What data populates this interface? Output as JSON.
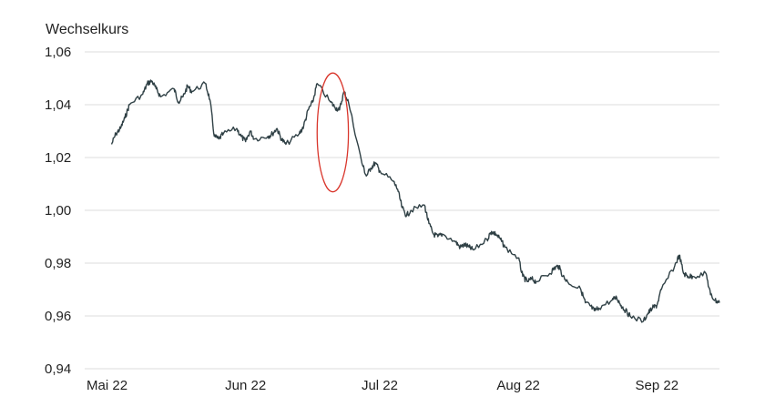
{
  "chart_data": {
    "type": "line",
    "title": "",
    "ylabel": "Wechselkurs",
    "xlabel": "",
    "ylim": [
      0.94,
      1.06
    ],
    "y_ticks": [
      "1,06",
      "1,04",
      "1,02",
      "1,00",
      "0,98",
      "0,96",
      "0,94"
    ],
    "y_tick_values": [
      1.06,
      1.04,
      1.02,
      1.0,
      0.98,
      0.96,
      0.94
    ],
    "x_ticks": [
      {
        "label": "Mai 22",
        "date": "2022-05-01"
      },
      {
        "label": "Jun 22",
        "date": "2022-06-01"
      },
      {
        "label": "Jul 22",
        "date": "2022-07-01"
      },
      {
        "label": "Aug 22",
        "date": "2022-08-01"
      },
      {
        "label": "Sep 22",
        "date": "2022-09-01"
      }
    ],
    "xlim": [
      "2022-04-26",
      "2022-09-15"
    ],
    "grid": "horizontal",
    "series": [
      {
        "color": "#2f4045",
        "points": [
          [
            "2022-05-02",
            1.025
          ],
          [
            "2022-05-03",
            1.029
          ],
          [
            "2022-05-04",
            1.031
          ],
          [
            "2022-05-05",
            1.035
          ],
          [
            "2022-05-06",
            1.04
          ],
          [
            "2022-05-09",
            1.044
          ],
          [
            "2022-05-10",
            1.048
          ],
          [
            "2022-05-11",
            1.049
          ],
          [
            "2022-05-12",
            1.046
          ],
          [
            "2022-05-13",
            1.043
          ],
          [
            "2022-05-16",
            1.046
          ],
          [
            "2022-05-17",
            1.041
          ],
          [
            "2022-05-18",
            1.043
          ],
          [
            "2022-05-19",
            1.047
          ],
          [
            "2022-05-20",
            1.045
          ],
          [
            "2022-05-23",
            1.048
          ],
          [
            "2022-05-24",
            1.042
          ],
          [
            "2022-05-25",
            1.028
          ],
          [
            "2022-05-26",
            1.027
          ],
          [
            "2022-05-27",
            1.029
          ],
          [
            "2022-05-30",
            1.031
          ],
          [
            "2022-05-31",
            1.028
          ],
          [
            "2022-06-01",
            1.026
          ],
          [
            "2022-06-02",
            1.03
          ],
          [
            "2022-06-03",
            1.027
          ],
          [
            "2022-06-06",
            1.028
          ],
          [
            "2022-06-07",
            1.029
          ],
          [
            "2022-06-08",
            1.031
          ],
          [
            "2022-06-09",
            1.027
          ],
          [
            "2022-06-10",
            1.025
          ],
          [
            "2022-06-13",
            1.029
          ],
          [
            "2022-06-14",
            1.032
          ],
          [
            "2022-06-15",
            1.038
          ],
          [
            "2022-06-16",
            1.041
          ],
          [
            "2022-06-17",
            1.048
          ],
          [
            "2022-06-20",
            1.041
          ],
          [
            "2022-06-21",
            1.039
          ],
          [
            "2022-06-22",
            1.038
          ],
          [
            "2022-06-23",
            1.045
          ],
          [
            "2022-06-24",
            1.041
          ],
          [
            "2022-06-27",
            1.018
          ],
          [
            "2022-06-28",
            1.013
          ],
          [
            "2022-06-29",
            1.016
          ],
          [
            "2022-06-30",
            1.018
          ],
          [
            "2022-07-01",
            1.015
          ],
          [
            "2022-07-04",
            1.011
          ],
          [
            "2022-07-05",
            1.008
          ],
          [
            "2022-07-06",
            1.001
          ],
          [
            "2022-07-07",
            0.998
          ],
          [
            "2022-07-08",
            1.0
          ],
          [
            "2022-07-11",
            1.002
          ],
          [
            "2022-07-12",
            0.995
          ],
          [
            "2022-07-13",
            0.991
          ],
          [
            "2022-07-14",
            0.99
          ],
          [
            "2022-07-15",
            0.991
          ],
          [
            "2022-07-18",
            0.988
          ],
          [
            "2022-07-19",
            0.986
          ],
          [
            "2022-07-20",
            0.987
          ],
          [
            "2022-07-21",
            0.986
          ],
          [
            "2022-07-22",
            0.985
          ],
          [
            "2022-07-25",
            0.989
          ],
          [
            "2022-07-26",
            0.992
          ],
          [
            "2022-07-27",
            0.991
          ],
          [
            "2022-07-28",
            0.989
          ],
          [
            "2022-07-29",
            0.986
          ],
          [
            "2022-08-01",
            0.982
          ],
          [
            "2022-08-02",
            0.975
          ],
          [
            "2022-08-03",
            0.973
          ],
          [
            "2022-08-04",
            0.974
          ],
          [
            "2022-08-05",
            0.973
          ],
          [
            "2022-08-08",
            0.976
          ],
          [
            "2022-08-09",
            0.978
          ],
          [
            "2022-08-10",
            0.979
          ],
          [
            "2022-08-11",
            0.975
          ],
          [
            "2022-08-12",
            0.973
          ],
          [
            "2022-08-15",
            0.97
          ],
          [
            "2022-08-16",
            0.965
          ],
          [
            "2022-08-17",
            0.964
          ],
          [
            "2022-08-18",
            0.962
          ],
          [
            "2022-08-19",
            0.963
          ],
          [
            "2022-08-22",
            0.966
          ],
          [
            "2022-08-23",
            0.967
          ],
          [
            "2022-08-24",
            0.964
          ],
          [
            "2022-08-25",
            0.962
          ],
          [
            "2022-08-26",
            0.96
          ],
          [
            "2022-08-29",
            0.958
          ],
          [
            "2022-08-30",
            0.961
          ],
          [
            "2022-08-31",
            0.963
          ],
          [
            "2022-09-01",
            0.964
          ],
          [
            "2022-09-02",
            0.97
          ],
          [
            "2022-09-05",
            0.979
          ],
          [
            "2022-09-06",
            0.983
          ],
          [
            "2022-09-07",
            0.976
          ],
          [
            "2022-09-08",
            0.975
          ],
          [
            "2022-09-09",
            0.975
          ],
          [
            "2022-09-12",
            0.976
          ],
          [
            "2022-09-13",
            0.968
          ],
          [
            "2022-09-14",
            0.966
          ],
          [
            "2022-09-15",
            0.965
          ]
        ]
      }
    ],
    "annotation": {
      "shape": "ellipse",
      "color": "#d9362c",
      "x_from": "2022-06-17",
      "x_to": "2022-06-24",
      "y_from": 1.007,
      "y_to": 1.052
    }
  }
}
